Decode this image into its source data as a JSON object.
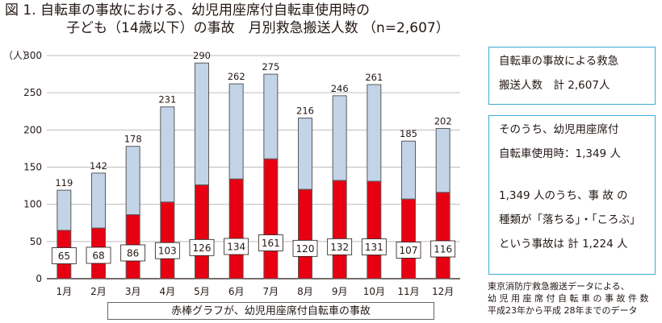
{
  "title": {
    "line1": "図 1. 自転車の事故における、幼児用座席付自転車使用時の",
    "line2": "子ども（14歳以下）の事故　月別救急搬送人数 （n=2,607）"
  },
  "chart_data": {
    "type": "bar",
    "stacked": true,
    "categories": [
      "1月",
      "2月",
      "3月",
      "4月",
      "5月",
      "6月",
      "7月",
      "8月",
      "9月",
      "10月",
      "11月",
      "12月"
    ],
    "totals": [
      119,
      142,
      178,
      231,
      290,
      262,
      275,
      216,
      246,
      261,
      185,
      202
    ],
    "series": [
      {
        "values": [
          65,
          68,
          86,
          103,
          126,
          134,
          161,
          120,
          132,
          131,
          107,
          116
        ],
        "color": "#e60012"
      },
      {
        "values": [
          54,
          74,
          92,
          128,
          164,
          128,
          114,
          96,
          114,
          130,
          78,
          86
        ],
        "color": "#c3d3e8"
      }
    ],
    "yaxis": {
      "unit": "（人）",
      "ylim": [
        0,
        300
      ],
      "ticks": [
        0,
        50,
        100,
        150,
        200,
        250,
        300
      ]
    },
    "grid": true,
    "legend_text": "赤棒グラフが、幼児用座席付自転車の事故"
  },
  "info": {
    "box1": {
      "line1": "自転車の事故による救急",
      "line2": "搬送人数　計 2,607人"
    },
    "box2": {
      "line1": "そのうち、幼児用座席付",
      "line2": "自転車使用時：1,349 人",
      "line3": "1,349 人のうち、事 故 の",
      "line4": "種類が「落ちる」・「ころぶ」",
      "line5": "という事故は 計 1,224 人"
    }
  },
  "source": {
    "line1": "東京消防庁救急搬送データによる、",
    "line2": "幼 児 用 座 席 付 自 転 車 の 事 故 件 数",
    "line3": "平成23年から平成 28年までのデータ"
  }
}
